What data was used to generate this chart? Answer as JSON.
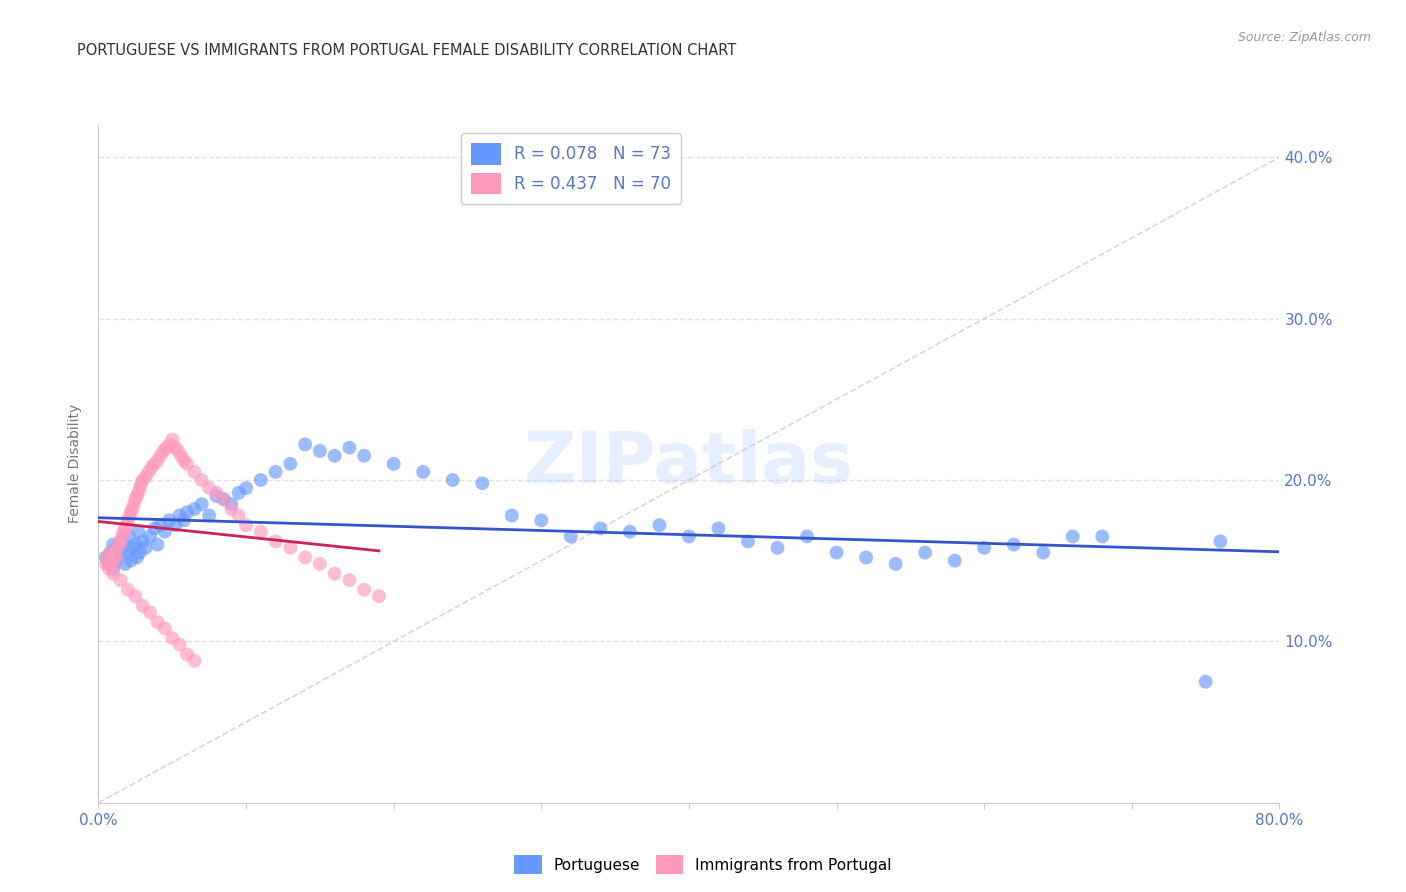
{
  "title": "PORTUGUESE VS IMMIGRANTS FROM PORTUGAL FEMALE DISABILITY CORRELATION CHART",
  "source": "Source: ZipAtlas.com",
  "ylabel": "Female Disability",
  "xlim": [
    0.0,
    0.8
  ],
  "ylim": [
    0.0,
    0.42
  ],
  "xticks": [
    0.0,
    0.1,
    0.2,
    0.3,
    0.4,
    0.5,
    0.6,
    0.7,
    0.8
  ],
  "yticks": [
    0.0,
    0.1,
    0.2,
    0.3,
    0.4
  ],
  "xticklabels": [
    "0.0%",
    "",
    "",
    "",
    "",
    "",
    "",
    "",
    "80.0%"
  ],
  "yticklabels_right": [
    "",
    "10.0%",
    "20.0%",
    "30.0%",
    "40.0%"
  ],
  "blue_color": "#6699ff",
  "pink_color": "#ff99bb",
  "blue_line_color": "#3355cc",
  "pink_line_color": "#cc2255",
  "diag_line_color": "#cccccc",
  "grid_color": "#dddddd",
  "title_color": "#333333",
  "axis_label_color": "#5577cc",
  "legend_R1": "R = 0.078",
  "legend_N1": "N = 73",
  "legend_R2": "R = 0.437",
  "legend_N2": "N = 70",
  "legend_label1": "Portuguese",
  "legend_label2": "Immigrants from Portugal",
  "watermark": "ZIPatlas",
  "blue_scatter_x": [
    0.005,
    0.007,
    0.008,
    0.01,
    0.01,
    0.012,
    0.013,
    0.015,
    0.016,
    0.018,
    0.02,
    0.021,
    0.022,
    0.023,
    0.025,
    0.026,
    0.027,
    0.028,
    0.03,
    0.032,
    0.035,
    0.038,
    0.04,
    0.042,
    0.045,
    0.048,
    0.052,
    0.055,
    0.058,
    0.06,
    0.065,
    0.07,
    0.075,
    0.08,
    0.085,
    0.09,
    0.095,
    0.1,
    0.11,
    0.12,
    0.13,
    0.14,
    0.15,
    0.16,
    0.17,
    0.18,
    0.2,
    0.22,
    0.24,
    0.26,
    0.28,
    0.3,
    0.32,
    0.34,
    0.36,
    0.38,
    0.4,
    0.42,
    0.44,
    0.46,
    0.48,
    0.5,
    0.52,
    0.54,
    0.56,
    0.58,
    0.6,
    0.62,
    0.64,
    0.66,
    0.68,
    0.75,
    0.76
  ],
  "blue_scatter_y": [
    0.152,
    0.148,
    0.155,
    0.145,
    0.16,
    0.15,
    0.158,
    0.155,
    0.162,
    0.148,
    0.155,
    0.165,
    0.15,
    0.158,
    0.16,
    0.152,
    0.168,
    0.155,
    0.162,
    0.158,
    0.165,
    0.17,
    0.16,
    0.172,
    0.168,
    0.175,
    0.172,
    0.178,
    0.175,
    0.18,
    0.182,
    0.185,
    0.178,
    0.19,
    0.188,
    0.185,
    0.192,
    0.195,
    0.2,
    0.205,
    0.21,
    0.222,
    0.218,
    0.215,
    0.22,
    0.215,
    0.21,
    0.205,
    0.2,
    0.198,
    0.178,
    0.175,
    0.165,
    0.17,
    0.168,
    0.172,
    0.165,
    0.17,
    0.162,
    0.158,
    0.165,
    0.155,
    0.152,
    0.148,
    0.155,
    0.15,
    0.158,
    0.16,
    0.155,
    0.165,
    0.165,
    0.075,
    0.162
  ],
  "pink_scatter_x": [
    0.005,
    0.006,
    0.007,
    0.008,
    0.009,
    0.01,
    0.011,
    0.012,
    0.013,
    0.014,
    0.015,
    0.016,
    0.017,
    0.018,
    0.019,
    0.02,
    0.021,
    0.022,
    0.023,
    0.024,
    0.025,
    0.026,
    0.027,
    0.028,
    0.029,
    0.03,
    0.032,
    0.034,
    0.036,
    0.038,
    0.04,
    0.042,
    0.044,
    0.046,
    0.048,
    0.05,
    0.052,
    0.054,
    0.056,
    0.058,
    0.06,
    0.065,
    0.07,
    0.075,
    0.08,
    0.085,
    0.09,
    0.095,
    0.1,
    0.11,
    0.12,
    0.13,
    0.14,
    0.15,
    0.16,
    0.17,
    0.18,
    0.19,
    0.01,
    0.015,
    0.02,
    0.025,
    0.03,
    0.035,
    0.04,
    0.045,
    0.05,
    0.055,
    0.06,
    0.065
  ],
  "pink_scatter_y": [
    0.148,
    0.152,
    0.145,
    0.155,
    0.15,
    0.148,
    0.155,
    0.152,
    0.158,
    0.16,
    0.162,
    0.165,
    0.168,
    0.17,
    0.172,
    0.175,
    0.178,
    0.18,
    0.182,
    0.185,
    0.188,
    0.19,
    0.192,
    0.195,
    0.198,
    0.2,
    0.202,
    0.205,
    0.208,
    0.21,
    0.212,
    0.215,
    0.218,
    0.22,
    0.222,
    0.225,
    0.22,
    0.218,
    0.215,
    0.212,
    0.21,
    0.205,
    0.2,
    0.195,
    0.192,
    0.188,
    0.182,
    0.178,
    0.172,
    0.168,
    0.162,
    0.158,
    0.152,
    0.148,
    0.142,
    0.138,
    0.132,
    0.128,
    0.142,
    0.138,
    0.132,
    0.128,
    0.122,
    0.118,
    0.112,
    0.108,
    0.102,
    0.098,
    0.092,
    0.088
  ]
}
